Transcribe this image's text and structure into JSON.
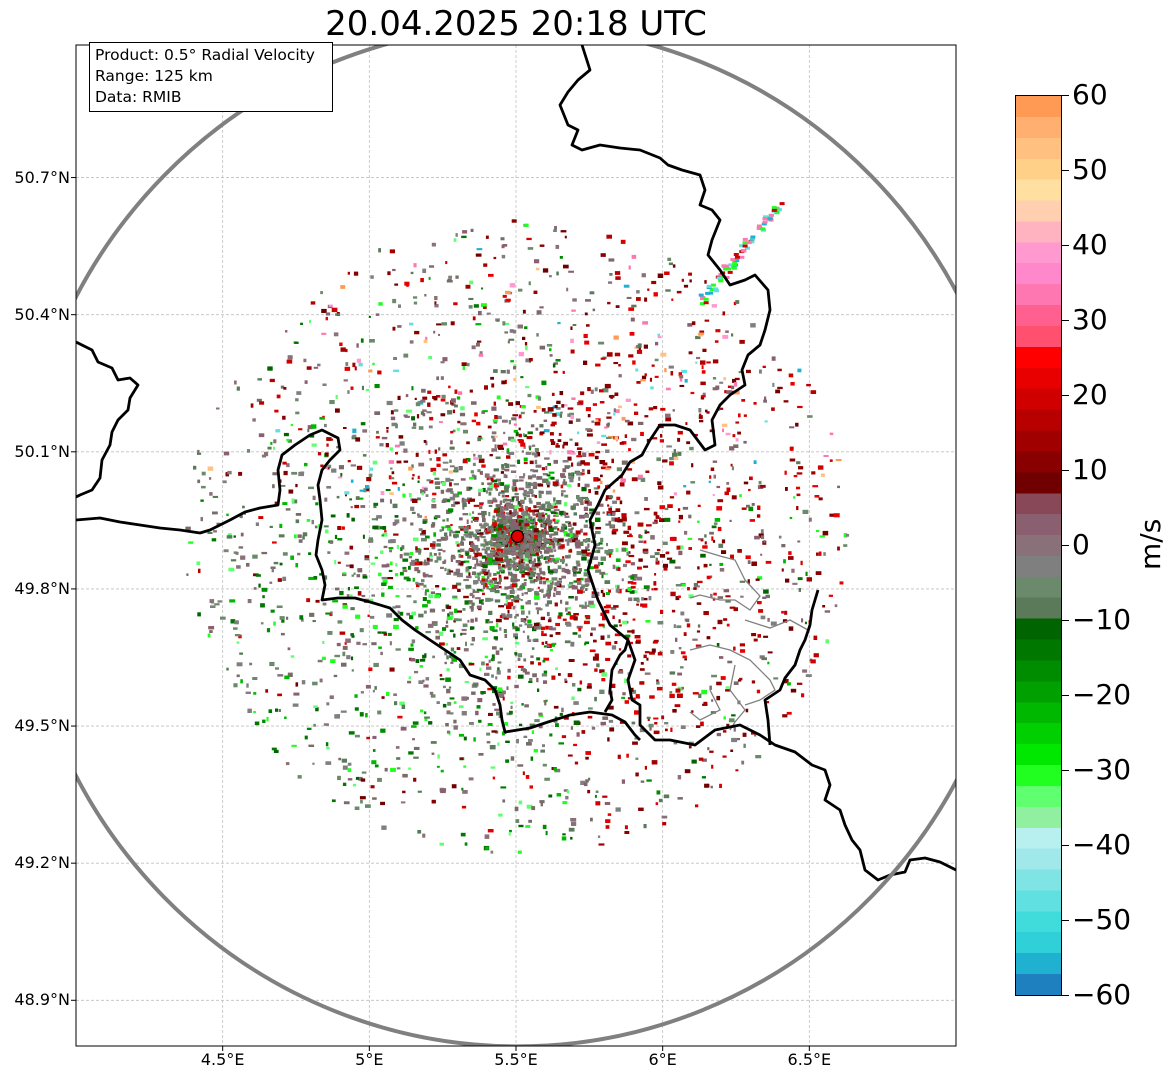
{
  "title": "20.04.2025 20:18 UTC",
  "info_box": {
    "product": "Product: 0.5° Radial Velocity",
    "range": "Range: 125 km",
    "data": "Data: RMIB"
  },
  "map": {
    "lat_labels": [
      "50.7°N",
      "50.4°N",
      "50.1°N",
      "49.8°N",
      "49.5°N",
      "49.2°N",
      "48.9°N"
    ],
    "lon_labels": [
      "4.5°E",
      "5°E",
      "5.5°E",
      "6°E",
      "6.5°E"
    ],
    "lat_range": [
      48.8,
      50.99
    ],
    "lon_range": [
      4.0,
      7.0
    ],
    "grid": true,
    "radar_site": {
      "lon": 5.505,
      "lat": 49.915
    },
    "range_km": 125,
    "colors": {
      "border": "#000000",
      "range_ring": "#808080",
      "grid": "#c8c8c8",
      "radar_marker": "#e00000"
    }
  },
  "colorbar": {
    "unit": "m/s",
    "min": -60,
    "max": 60,
    "ticks": [
      "60",
      "50",
      "40",
      "30",
      "20",
      "10",
      "0",
      "−10",
      "−20",
      "−30",
      "−40",
      "−50",
      "−60"
    ],
    "colors_top_to_bottom": [
      "#ff9a55",
      "#ffb070",
      "#ffc080",
      "#ffd088",
      "#ffe0a0",
      "#ffcfb0",
      "#ffb3c0",
      "#ff99d0",
      "#ff88cc",
      "#ff77b0",
      "#ff6090",
      "#ff5070",
      "#ff0000",
      "#e80000",
      "#d00000",
      "#b80000",
      "#a00000",
      "#880000",
      "#700000",
      "#884858",
      "#8a6070",
      "#8a7078",
      "#7f7f7f",
      "#6b8a6b",
      "#5a7a5a",
      "#006400",
      "#007800",
      "#008c00",
      "#00a000",
      "#00b800",
      "#00d000",
      "#00e800",
      "#20ff20",
      "#60ff70",
      "#90f0a0",
      "#b8f0f0",
      "#a0e8ea",
      "#80e4e4",
      "#60e0e0",
      "#40dcdc",
      "#30d0d8",
      "#20b0d0",
      "#1f80c0"
    ]
  }
}
